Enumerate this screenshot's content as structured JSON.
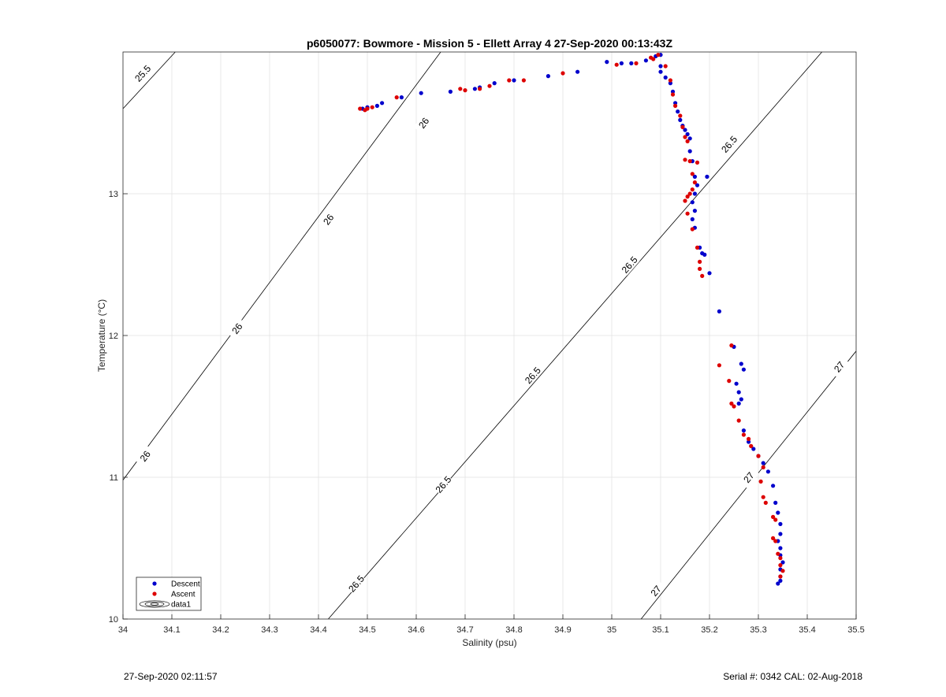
{
  "footer": {
    "timestamp": "27-Sep-2020 02:11:57",
    "serial_cal": "Serial #: 0342  CAL: 02-Aug-2018"
  },
  "chart_data": {
    "type": "scatter",
    "title": "p6050077: Bowmore - Mission 5 - Ellett Array 4 27-Sep-2020 00:13:43Z",
    "xlabel": "Salinity (psu)",
    "ylabel": "Temperature (°C)",
    "xlim": [
      34,
      35.5
    ],
    "ylim": [
      10,
      14
    ],
    "xticks": [
      "34",
      "34.1",
      "34.2",
      "34.3",
      "34.4",
      "34.5",
      "34.6",
      "34.7",
      "34.8",
      "34.9",
      "35",
      "35.1",
      "35.2",
      "35.3",
      "35.4",
      "35.5"
    ],
    "yticks": [
      "10",
      "11",
      "12",
      "13"
    ],
    "grid": true,
    "legend": {
      "position": "bottom-left",
      "entries": [
        "Descent",
        "Ascent",
        "data1"
      ]
    },
    "colors": {
      "Descent": "#0000cc",
      "Ascent": "#dd0000",
      "contour": "#000000",
      "grid": "#e3e3e3"
    },
    "contours": [
      {
        "level": "25.5",
        "points": [
          [
            34,
            13.6
          ],
          [
            34.107,
            14
          ]
        ],
        "labels": [
          [
            34.04,
            13.85
          ]
        ]
      },
      {
        "level": "26",
        "points": [
          [
            34,
            10.98
          ],
          [
            34.65,
            14
          ]
        ],
        "labels": [
          [
            34.045,
            11.15
          ],
          [
            34.233,
            12.05
          ],
          [
            34.42,
            12.82
          ],
          [
            34.615,
            13.5
          ]
        ]
      },
      {
        "level": "26.5",
        "points": [
          [
            34.42,
            10
          ],
          [
            35.43,
            14
          ]
        ],
        "labels": [
          [
            34.477,
            10.25
          ],
          [
            34.655,
            10.95
          ],
          [
            34.838,
            11.72
          ],
          [
            35.036,
            12.5
          ],
          [
            35.24,
            13.35
          ]
        ]
      },
      {
        "level": "27",
        "points": [
          [
            35.06,
            10
          ],
          [
            35.5,
            11.89
          ]
        ],
        "labels": [
          [
            35.09,
            10.2
          ],
          [
            35.28,
            11.0
          ],
          [
            35.465,
            11.78
          ]
        ]
      }
    ],
    "series": [
      {
        "name": "Descent",
        "points": [
          [
            34.49,
            13.6
          ],
          [
            34.5,
            13.61
          ],
          [
            34.52,
            13.62
          ],
          [
            34.53,
            13.64
          ],
          [
            34.57,
            13.68
          ],
          [
            34.61,
            13.71
          ],
          [
            34.67,
            13.72
          ],
          [
            34.72,
            13.74
          ],
          [
            34.73,
            13.75
          ],
          [
            34.76,
            13.78
          ],
          [
            34.8,
            13.8
          ],
          [
            34.87,
            13.83
          ],
          [
            34.93,
            13.86
          ],
          [
            34.99,
            13.93
          ],
          [
            35.02,
            13.92
          ],
          [
            35.04,
            13.92
          ],
          [
            35.07,
            13.94
          ],
          [
            35.09,
            13.97
          ],
          [
            35.1,
            13.98
          ],
          [
            35.1,
            13.9
          ],
          [
            35.1,
            13.86
          ],
          [
            35.11,
            13.82
          ],
          [
            35.12,
            13.78
          ],
          [
            35.125,
            13.72
          ],
          [
            35.13,
            13.64
          ],
          [
            35.135,
            13.58
          ],
          [
            35.14,
            13.52
          ],
          [
            35.145,
            13.48
          ],
          [
            35.15,
            13.45
          ],
          [
            35.155,
            13.42
          ],
          [
            35.16,
            13.39
          ],
          [
            35.16,
            13.3
          ],
          [
            35.165,
            13.23
          ],
          [
            35.17,
            13.12
          ],
          [
            35.175,
            13.06
          ],
          [
            35.17,
            13.0
          ],
          [
            35.165,
            12.94
          ],
          [
            35.17,
            12.88
          ],
          [
            35.165,
            12.82
          ],
          [
            35.17,
            12.76
          ],
          [
            35.18,
            12.62
          ],
          [
            35.185,
            12.58
          ],
          [
            35.19,
            12.57
          ],
          [
            35.2,
            12.44
          ],
          [
            35.195,
            13.12
          ],
          [
            35.22,
            12.17
          ],
          [
            35.25,
            11.92
          ],
          [
            35.255,
            11.66
          ],
          [
            35.26,
            11.6
          ],
          [
            35.265,
            11.55
          ],
          [
            35.26,
            11.52
          ],
          [
            35.265,
            11.8
          ],
          [
            35.27,
            11.76
          ],
          [
            35.27,
            11.33
          ],
          [
            35.28,
            11.25
          ],
          [
            35.29,
            11.2
          ],
          [
            35.3,
            11.15
          ],
          [
            35.31,
            11.1
          ],
          [
            35.32,
            11.04
          ],
          [
            35.33,
            10.94
          ],
          [
            35.335,
            10.82
          ],
          [
            35.34,
            10.75
          ],
          [
            35.345,
            10.67
          ],
          [
            35.345,
            10.6
          ],
          [
            35.34,
            10.55
          ],
          [
            35.345,
            10.5
          ],
          [
            35.345,
            10.45
          ],
          [
            35.35,
            10.4
          ],
          [
            35.345,
            10.35
          ],
          [
            35.345,
            10.3
          ],
          [
            35.345,
            10.27
          ],
          [
            35.34,
            10.25
          ]
        ]
      },
      {
        "name": "Ascent",
        "points": [
          [
            34.485,
            13.6
          ],
          [
            34.495,
            13.59
          ],
          [
            34.5,
            13.6
          ],
          [
            34.51,
            13.61
          ],
          [
            34.56,
            13.68
          ],
          [
            34.69,
            13.74
          ],
          [
            34.7,
            13.73
          ],
          [
            34.73,
            13.74
          ],
          [
            34.75,
            13.76
          ],
          [
            34.79,
            13.8
          ],
          [
            34.82,
            13.8
          ],
          [
            34.9,
            13.85
          ],
          [
            35.01,
            13.91
          ],
          [
            35.05,
            13.92
          ],
          [
            35.08,
            13.96
          ],
          [
            35.085,
            13.95
          ],
          [
            35.095,
            13.98
          ],
          [
            35.11,
            13.9
          ],
          [
            35.12,
            13.8
          ],
          [
            35.125,
            13.7
          ],
          [
            35.13,
            13.62
          ],
          [
            35.14,
            13.55
          ],
          [
            35.145,
            13.47
          ],
          [
            35.15,
            13.4
          ],
          [
            35.155,
            13.37
          ],
          [
            35.15,
            13.24
          ],
          [
            35.16,
            13.23
          ],
          [
            35.165,
            13.14
          ],
          [
            35.175,
            13.22
          ],
          [
            35.17,
            13.08
          ],
          [
            35.165,
            13.03
          ],
          [
            35.16,
            13.0
          ],
          [
            35.155,
            12.98
          ],
          [
            35.15,
            12.95
          ],
          [
            35.155,
            12.86
          ],
          [
            35.165,
            12.75
          ],
          [
            35.175,
            12.62
          ],
          [
            35.18,
            12.52
          ],
          [
            35.18,
            12.47
          ],
          [
            35.185,
            12.42
          ],
          [
            35.22,
            11.79
          ],
          [
            35.245,
            11.93
          ],
          [
            35.24,
            11.68
          ],
          [
            35.245,
            11.52
          ],
          [
            35.25,
            11.5
          ],
          [
            35.26,
            11.4
          ],
          [
            35.27,
            11.3
          ],
          [
            35.28,
            11.27
          ],
          [
            35.285,
            11.22
          ],
          [
            35.3,
            11.15
          ],
          [
            35.31,
            11.07
          ],
          [
            35.305,
            10.97
          ],
          [
            35.31,
            10.86
          ],
          [
            35.315,
            10.82
          ],
          [
            35.33,
            10.72
          ],
          [
            35.335,
            10.7
          ],
          [
            35.33,
            10.57
          ],
          [
            35.335,
            10.55
          ],
          [
            35.34,
            10.46
          ],
          [
            35.345,
            10.43
          ],
          [
            35.345,
            10.38
          ],
          [
            35.35,
            10.34
          ],
          [
            35.345,
            10.3
          ]
        ]
      }
    ]
  }
}
